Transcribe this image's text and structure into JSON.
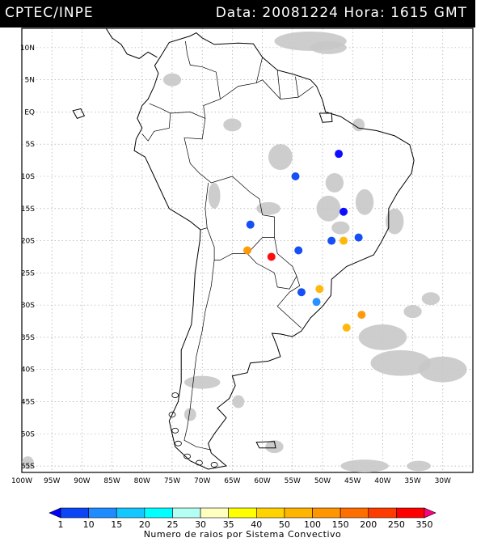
{
  "header": {
    "source": "CPTEC/INPE",
    "date_label": "Data:",
    "date": "20081224",
    "time_label": "Hora:",
    "time": "1615",
    "tz": "GMT"
  },
  "map": {
    "lon_range": [
      -100,
      -25
    ],
    "lat_range": [
      -56,
      13
    ],
    "lat_ticks": [
      {
        "v": 10,
        "label": "10N"
      },
      {
        "v": 5,
        "label": "5N"
      },
      {
        "v": 0,
        "label": "EQ"
      },
      {
        "v": -5,
        "label": "5S"
      },
      {
        "v": -10,
        "label": "10S"
      },
      {
        "v": -15,
        "label": "15S"
      },
      {
        "v": -20,
        "label": "20S"
      },
      {
        "v": -25,
        "label": "25S"
      },
      {
        "v": -30,
        "label": "30S"
      },
      {
        "v": -35,
        "label": "35S"
      },
      {
        "v": -40,
        "label": "40S"
      },
      {
        "v": -45,
        "label": "45S"
      },
      {
        "v": -50,
        "label": "50S"
      },
      {
        "v": -55,
        "label": "55S"
      }
    ],
    "lon_ticks": [
      {
        "v": -100,
        "label": "100W"
      },
      {
        "v": -95,
        "label": "95W"
      },
      {
        "v": -90,
        "label": "90W"
      },
      {
        "v": -85,
        "label": "85W"
      },
      {
        "v": -80,
        "label": "80W"
      },
      {
        "v": -75,
        "label": "75W"
      },
      {
        "v": -70,
        "label": "70W"
      },
      {
        "v": -65,
        "label": "65W"
      },
      {
        "v": -60,
        "label": "60W"
      },
      {
        "v": -55,
        "label": "55W"
      },
      {
        "v": -50,
        "label": "50W"
      },
      {
        "v": -45,
        "label": "45W"
      },
      {
        "v": -40,
        "label": "40W"
      },
      {
        "v": -35,
        "label": "35W"
      },
      {
        "v": -30,
        "label": "30W"
      }
    ],
    "coastline_color": "#000000",
    "cloud_color": "#c8c8c8"
  },
  "colorbar": {
    "title": "Numero de raios por Sistema Convectivo",
    "labels": [
      "1",
      "10",
      "15",
      "20",
      "25",
      "30",
      "35",
      "40",
      "50",
      "100",
      "150",
      "200",
      "250",
      "350"
    ],
    "colors": [
      "#0000ff",
      "#0a46f5",
      "#1e8cff",
      "#14c8ff",
      "#00ffff",
      "#b4fff4",
      "#ffffc0",
      "#ffff00",
      "#ffd200",
      "#ffb400",
      "#ff9600",
      "#ff6e00",
      "#ff3c00",
      "#ff0000",
      "#ff0080"
    ]
  },
  "cells": [
    {
      "lon": -47.3,
      "lat": -6.5,
      "level": 0
    },
    {
      "lon": -54.5,
      "lat": -10,
      "level": 1
    },
    {
      "lon": -46.5,
      "lat": -15.5,
      "level": 0
    },
    {
      "lon": -62,
      "lat": -17.5,
      "level": 1
    },
    {
      "lon": -62.5,
      "lat": -21.5,
      "level": 10
    },
    {
      "lon": -58.5,
      "lat": -22.5,
      "level": 13
    },
    {
      "lon": -54,
      "lat": -21.5,
      "level": 1
    },
    {
      "lon": -48.5,
      "lat": -20,
      "level": 1
    },
    {
      "lon": -46.5,
      "lat": -20,
      "level": 9
    },
    {
      "lon": -44,
      "lat": -19.5,
      "level": 1
    },
    {
      "lon": -50.5,
      "lat": -27.5,
      "level": 9
    },
    {
      "lon": -51,
      "lat": -29.5,
      "level": 2
    },
    {
      "lon": -53.5,
      "lat": -28,
      "level": 1
    },
    {
      "lon": -43.5,
      "lat": -31.5,
      "level": 10
    },
    {
      "lon": -46,
      "lat": -33.5,
      "level": 9
    }
  ]
}
